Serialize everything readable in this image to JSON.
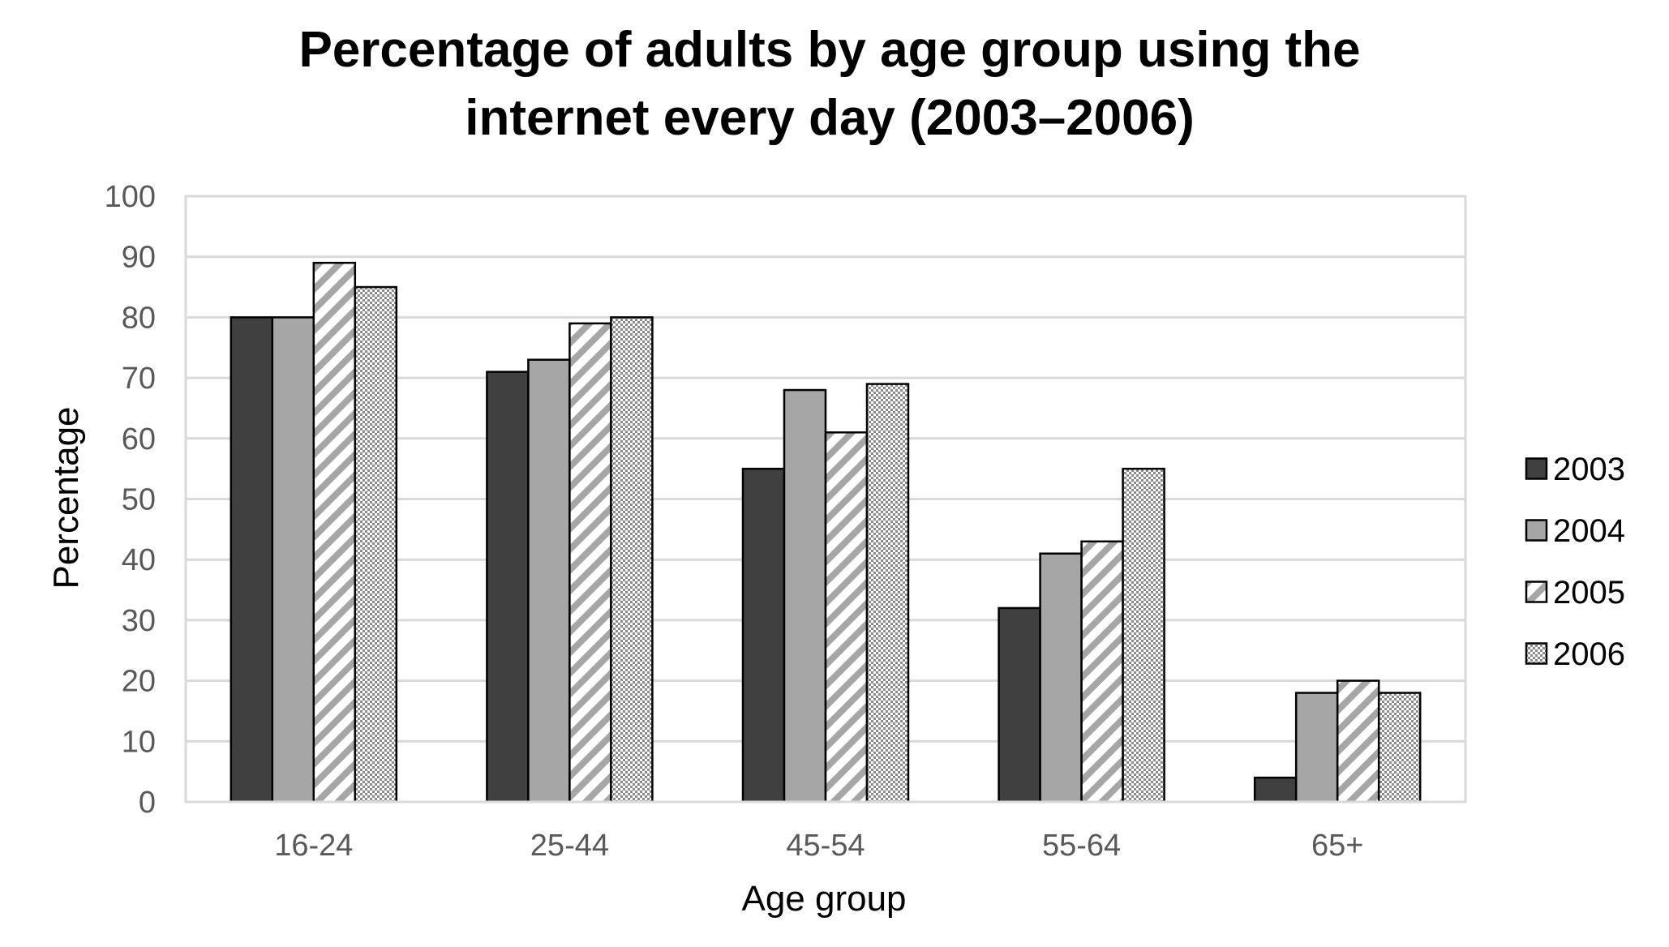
{
  "chart_data": {
    "type": "bar",
    "title_lines": [
      "Percentage of adults by age group using the",
      "internet every day (2003–2006)"
    ],
    "xlabel": "Age group",
    "ylabel": "Percentage",
    "ylim": [
      0,
      100
    ],
    "ytick_step": 10,
    "grid": true,
    "legend_position": "right",
    "categories": [
      "16-24",
      "25-44",
      "45-54",
      "55-64",
      "65+"
    ],
    "series": [
      {
        "name": "2003",
        "values": [
          80,
          71,
          55,
          32,
          4
        ],
        "fill": "solid-dark",
        "color": "#404040"
      },
      {
        "name": "2004",
        "values": [
          80,
          73,
          68,
          41,
          18
        ],
        "fill": "solid-gray",
        "color": "#a6a6a6"
      },
      {
        "name": "2005",
        "values": [
          89,
          79,
          61,
          43,
          20
        ],
        "fill": "diagonal-stripes",
        "color": "#a6a6a6"
      },
      {
        "name": "2006",
        "values": [
          85,
          80,
          69,
          55,
          18
        ],
        "fill": "checker",
        "color": "#8c8c8c"
      }
    ]
  }
}
